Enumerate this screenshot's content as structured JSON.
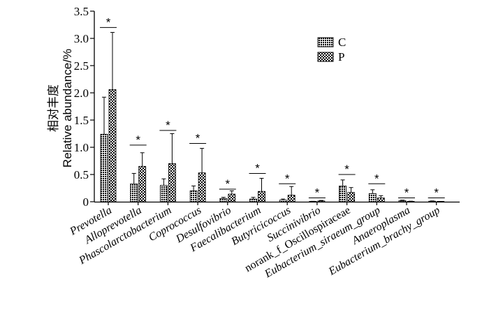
{
  "chart_data": {
    "type": "bar",
    "xlabel": "",
    "ylabel_cn": "相对丰度",
    "ylabel_en": "Relative abundance/%",
    "ylim": [
      0,
      3.5
    ],
    "yticks": [
      "0",
      "0.5",
      "1.0",
      "1.5",
      "2.0",
      "2.5",
      "3.0",
      "3.5"
    ],
    "grid": false,
    "legend_position": "top-right",
    "categories": [
      "Prevotella",
      "Alloprevotella",
      "Phascolarctobacterium",
      "Coprococcus",
      "Desulfovibrio",
      "Faecalibacterium",
      "Butyricicoccus",
      "Succinivibrio",
      "norank_f_Oscillospiraceae",
      "Eubacterium_siraeum_group",
      "Anaeroplasma",
      "Eubacterium_brachy_group"
    ],
    "category_italic": [
      true,
      true,
      true,
      true,
      true,
      true,
      true,
      true,
      false,
      true,
      true,
      true
    ],
    "series": [
      {
        "name": "C",
        "pattern": "dense-hatch",
        "values": [
          1.24,
          0.33,
          0.3,
          0.2,
          0.06,
          0.05,
          0.03,
          0.005,
          0.29,
          0.15,
          0.02,
          0.01
        ],
        "errors": [
          0.68,
          0.19,
          0.12,
          0.09,
          0.02,
          0.03,
          0.02,
          0.003,
          0.11,
          0.07,
          0.01,
          0.005
        ]
      },
      {
        "name": "P",
        "pattern": "checker",
        "values": [
          2.06,
          0.65,
          0.7,
          0.53,
          0.14,
          0.19,
          0.12,
          0.015,
          0.17,
          0.07,
          0.005,
          0.003
        ],
        "errors": [
          1.05,
          0.25,
          0.55,
          0.45,
          0.06,
          0.24,
          0.16,
          0.01,
          0.09,
          0.04,
          0.005,
          0.002
        ]
      }
    ],
    "significance": [
      {
        "label": "*",
        "y": 3.2
      },
      {
        "label": "*",
        "y": 1.04
      },
      {
        "label": "*",
        "y": 1.31
      },
      {
        "label": "*",
        "y": 1.07
      },
      {
        "label": "*",
        "y": 0.23
      },
      {
        "label": "*",
        "y": 0.52
      },
      {
        "label": "*",
        "y": 0.33
      },
      {
        "label": "*",
        "y": 0.07
      },
      {
        "label": "*",
        "y": 0.5
      },
      {
        "label": "*",
        "y": 0.33
      },
      {
        "label": "*",
        "y": 0.07
      },
      {
        "label": "*",
        "y": 0.07
      }
    ]
  }
}
